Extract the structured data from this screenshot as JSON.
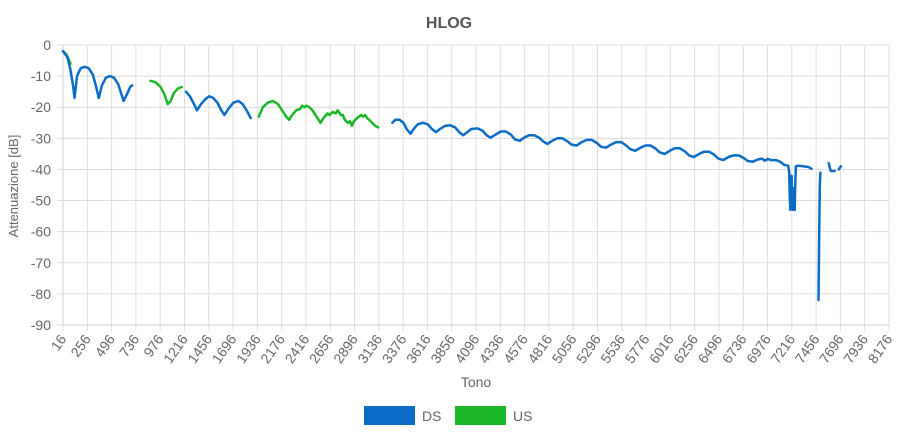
{
  "chart_data": {
    "type": "line",
    "title": "HLOG",
    "xlabel": "Tono",
    "ylabel": "Attenuazione [dB]",
    "xlim": [
      16,
      8176
    ],
    "ylim": [
      -90,
      0
    ],
    "x_ticks": [
      "16",
      "256",
      "496",
      "736",
      "976",
      "1216",
      "1456",
      "1696",
      "1936",
      "2176",
      "2416",
      "2656",
      "2896",
      "3136",
      "3376",
      "3616",
      "3856",
      "4096",
      "4336",
      "4576",
      "4816",
      "5056",
      "5296",
      "5536",
      "5776",
      "6016",
      "6256",
      "6496",
      "6736",
      "6976",
      "7216",
      "7456",
      "7696",
      "7936",
      "8176"
    ],
    "y_ticks": [
      "0",
      "-10",
      "-20",
      "-30",
      "-40",
      "-50",
      "-60",
      "-70",
      "-80",
      "-90"
    ],
    "grid": true,
    "legend_position": "bottom-center",
    "series": [
      {
        "name": "DS",
        "color": "#0a6cc4",
        "segments": [
          [
            [
              16,
              -2
            ],
            [
              60,
              -4
            ],
            [
              90,
              -8
            ],
            [
              115,
              -13
            ],
            [
              130,
              -17
            ],
            [
              155,
              -10
            ],
            [
              190,
              -7.5
            ],
            [
              230,
              -7
            ],
            [
              270,
              -7.5
            ],
            [
              310,
              -9.5
            ],
            [
              340,
              -13
            ],
            [
              370,
              -17
            ],
            [
              400,
              -13
            ],
            [
              440,
              -10.5
            ],
            [
              480,
              -10
            ],
            [
              520,
              -10.5
            ],
            [
              560,
              -12.5
            ],
            [
              590,
              -15.5
            ],
            [
              615,
              -18
            ],
            [
              645,
              -16
            ],
            [
              680,
              -13.5
            ],
            [
              700,
              -13
            ]
          ],
          [
            [
              1230,
              -15
            ],
            [
              1270,
              -16.5
            ],
            [
              1310,
              -19
            ],
            [
              1340,
              -21
            ],
            [
              1380,
              -19
            ],
            [
              1420,
              -17.5
            ],
            [
              1460,
              -16.5
            ],
            [
              1500,
              -17
            ],
            [
              1540,
              -18.5
            ],
            [
              1580,
              -21
            ],
            [
              1610,
              -22.5
            ],
            [
              1650,
              -20.5
            ],
            [
              1700,
              -18.5
            ],
            [
              1750,
              -18
            ],
            [
              1790,
              -19
            ],
            [
              1830,
              -21
            ],
            [
              1870,
              -23.5
            ]
          ],
          [
            [
              3270,
              -25
            ],
            [
              3300,
              -24
            ],
            [
              3340,
              -24
            ],
            [
              3380,
              -25
            ],
            [
              3410,
              -27
            ],
            [
              3450,
              -28.5
            ],
            [
              3480,
              -27
            ],
            [
              3520,
              -25.5
            ],
            [
              3570,
              -25
            ],
            [
              3620,
              -25.5
            ],
            [
              3660,
              -27
            ],
            [
              3700,
              -28
            ],
            [
              3740,
              -27
            ],
            [
              3790,
              -26
            ],
            [
              3840,
              -25.8
            ],
            [
              3890,
              -26.5
            ],
            [
              3930,
              -28
            ],
            [
              3970,
              -29
            ],
            [
              4010,
              -28
            ],
            [
              4050,
              -27
            ],
            [
              4110,
              -26.8
            ],
            [
              4160,
              -27.5
            ],
            [
              4200,
              -29
            ],
            [
              4240,
              -29.8
            ],
            [
              4290,
              -28.8
            ],
            [
              4340,
              -27.8
            ],
            [
              4390,
              -27.8
            ],
            [
              4440,
              -28.8
            ],
            [
              4480,
              -30.3
            ],
            [
              4530,
              -30.8
            ],
            [
              4570,
              -29.8
            ],
            [
              4620,
              -29
            ],
            [
              4670,
              -29
            ],
            [
              4720,
              -29.8
            ],
            [
              4760,
              -31
            ],
            [
              4800,
              -31.8
            ],
            [
              4850,
              -30.8
            ],
            [
              4900,
              -30
            ],
            [
              4950,
              -30
            ],
            [
              5000,
              -31
            ],
            [
              5040,
              -32
            ],
            [
              5090,
              -32.3
            ],
            [
              5140,
              -31.2
            ],
            [
              5190,
              -30.5
            ],
            [
              5240,
              -30.5
            ],
            [
              5290,
              -31.5
            ],
            [
              5330,
              -32.7
            ],
            [
              5380,
              -33
            ],
            [
              5430,
              -32
            ],
            [
              5480,
              -31.2
            ],
            [
              5530,
              -31.2
            ],
            [
              5580,
              -32.3
            ],
            [
              5620,
              -33.5
            ],
            [
              5670,
              -34
            ],
            [
              5720,
              -33
            ],
            [
              5770,
              -32.3
            ],
            [
              5820,
              -32.3
            ],
            [
              5870,
              -33.3
            ],
            [
              5910,
              -34.5
            ],
            [
              5960,
              -35
            ],
            [
              6010,
              -34
            ],
            [
              6060,
              -33.2
            ],
            [
              6110,
              -33.2
            ],
            [
              6160,
              -34.2
            ],
            [
              6200,
              -35.5
            ],
            [
              6250,
              -36
            ],
            [
              6300,
              -35
            ],
            [
              6350,
              -34.3
            ],
            [
              6400,
              -34.3
            ],
            [
              6450,
              -35.3
            ],
            [
              6490,
              -36.5
            ],
            [
              6540,
              -37
            ],
            [
              6590,
              -36
            ],
            [
              6640,
              -35.5
            ],
            [
              6690,
              -35.5
            ],
            [
              6740,
              -36.3
            ],
            [
              6780,
              -37.3
            ],
            [
              6830,
              -37.5
            ],
            [
              6880,
              -36.8
            ],
            [
              6920,
              -36.5
            ],
            [
              6950,
              -37.2
            ],
            [
              6980,
              -36.6
            ],
            [
              7010,
              -37
            ],
            [
              7060,
              -37
            ],
            [
              7100,
              -37.5
            ],
            [
              7140,
              -38.5
            ],
            [
              7180,
              -38.8
            ],
            [
              7190,
              -41
            ],
            [
              7196,
              -49
            ],
            [
              7202,
              -53
            ],
            [
              7208,
              -45
            ],
            [
              7214,
              -42
            ],
            [
              7220,
              -49
            ],
            [
              7226,
              -53
            ],
            [
              7232,
              -46
            ],
            [
              7238,
              -52
            ],
            [
              7244,
              -53
            ],
            [
              7250,
              -44
            ],
            [
              7256,
              -39
            ],
            [
              7280,
              -38.8
            ],
            [
              7330,
              -39
            ],
            [
              7380,
              -39.2
            ],
            [
              7410,
              -39.8
            ]
          ],
          [
            [
              7480,
              -82
            ],
            [
              7486,
              -60
            ],
            [
              7492,
              -45
            ],
            [
              7498,
              -41
            ]
          ],
          [
            [
              7580,
              -38
            ],
            [
              7600,
              -40.5
            ],
            [
              7640,
              -40.5
            ]
          ],
          [
            [
              7680,
              -40
            ],
            [
              7700,
              -39
            ]
          ]
        ]
      },
      {
        "name": "US",
        "color": "#1ab829",
        "segments": [
          [
            [
              16,
              -2
            ],
            [
              50,
              -3
            ],
            [
              90,
              -6
            ]
          ],
          [
            [
              880,
              -11.5
            ],
            [
              930,
              -12
            ],
            [
              980,
              -13.5
            ],
            [
              1020,
              -16
            ],
            [
              1050,
              -19
            ],
            [
              1080,
              -18
            ],
            [
              1110,
              -15.5
            ],
            [
              1150,
              -14
            ],
            [
              1190,
              -13.5
            ]
          ],
          [
            [
              1950,
              -23
            ],
            [
              1990,
              -20
            ],
            [
              2040,
              -18.5
            ],
            [
              2090,
              -18
            ],
            [
              2140,
              -19
            ],
            [
              2180,
              -21
            ],
            [
              2220,
              -23
            ],
            [
              2250,
              -24
            ],
            [
              2280,
              -22.5
            ],
            [
              2320,
              -21
            ],
            [
              2360,
              -20.5
            ],
            [
              2380,
              -19.5
            ],
            [
              2400,
              -20
            ],
            [
              2420,
              -19.5
            ],
            [
              2450,
              -20
            ],
            [
              2480,
              -21
            ],
            [
              2510,
              -22.5
            ],
            [
              2540,
              -24
            ],
            [
              2560,
              -25
            ],
            [
              2580,
              -24
            ],
            [
              2600,
              -23
            ],
            [
              2630,
              -22
            ],
            [
              2650,
              -22.5
            ],
            [
              2680,
              -21.5
            ],
            [
              2710,
              -22
            ],
            [
              2730,
              -21
            ],
            [
              2760,
              -22.5
            ],
            [
              2780,
              -22.5
            ],
            [
              2800,
              -24
            ],
            [
              2830,
              -25
            ],
            [
              2850,
              -24.5
            ],
            [
              2870,
              -26
            ],
            [
              2890,
              -24.5
            ],
            [
              2920,
              -23.5
            ],
            [
              2940,
              -23
            ],
            [
              2960,
              -22.5
            ],
            [
              2980,
              -23
            ],
            [
              3000,
              -22.5
            ],
            [
              3020,
              -23.5
            ],
            [
              3040,
              -24
            ],
            [
              3070,
              -25
            ],
            [
              3100,
              -26
            ],
            [
              3130,
              -26.5
            ]
          ]
        ]
      }
    ]
  }
}
